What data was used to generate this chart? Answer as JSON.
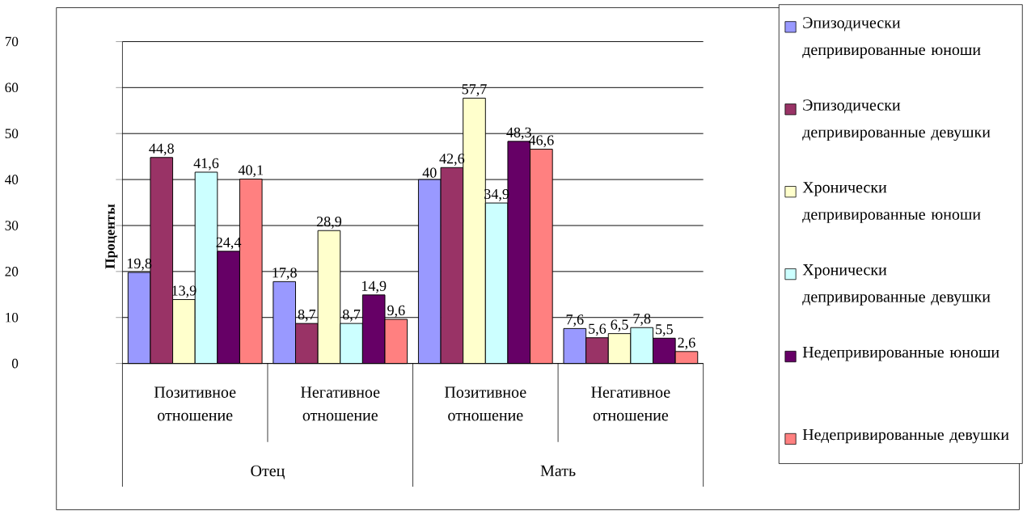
{
  "chart_data": {
    "type": "bar",
    "ylabel": "Проценты",
    "categories": [
      "Позитивное отношение",
      "Негативное отношение",
      "Позитивное отношение",
      "Негативное отношение"
    ],
    "series": [
      {
        "name": "Эпизодически депривированные юноши",
        "color": "#9999ff",
        "values": [
          19.8,
          17.8,
          40,
          7.6
        ],
        "value_labels": [
          "19,8",
          "17,8",
          "40",
          "7,6"
        ]
      },
      {
        "name": "Эпизодически депривированные девушки",
        "color": "#993366",
        "values": [
          44.8,
          8.7,
          42.6,
          5.6
        ],
        "value_labels": [
          "44,8",
          "8,7",
          "42,6",
          "5,6"
        ]
      },
      {
        "name": "Хронически депривированные юноши",
        "color": "#ffffcc",
        "values": [
          13.9,
          28.9,
          57.7,
          6.5
        ],
        "value_labels": [
          "13,9",
          "28,9",
          "57,7",
          "6,5"
        ]
      },
      {
        "name": "Хронически депривированные девушки",
        "color": "#ccffff",
        "values": [
          41.6,
          8.7,
          34.9,
          7.8
        ],
        "value_labels": [
          "41,6",
          "8,7",
          "34,9",
          "7,8"
        ]
      },
      {
        "name": "Недепривированные юноши",
        "color": "#660066",
        "values": [
          24.4,
          14.9,
          48.3,
          5.5
        ],
        "value_labels": [
          "24,4",
          "14,9",
          "48,3",
          "5,5"
        ]
      },
      {
        "name": "Недепривированные девушки",
        "color": "#ff8080",
        "values": [
          40.1,
          9.6,
          46.6,
          2.6
        ],
        "value_labels": [
          "40,1",
          "9,6",
          "46,6",
          "2,6"
        ]
      }
    ],
    "annotations": [
      "Отец",
      "Мать"
    ],
    "ylim": [
      0,
      70
    ],
    "yticks": [
      0,
      10,
      20,
      30,
      40,
      50,
      60,
      70
    ],
    "grid": "y",
    "legend": "right"
  }
}
